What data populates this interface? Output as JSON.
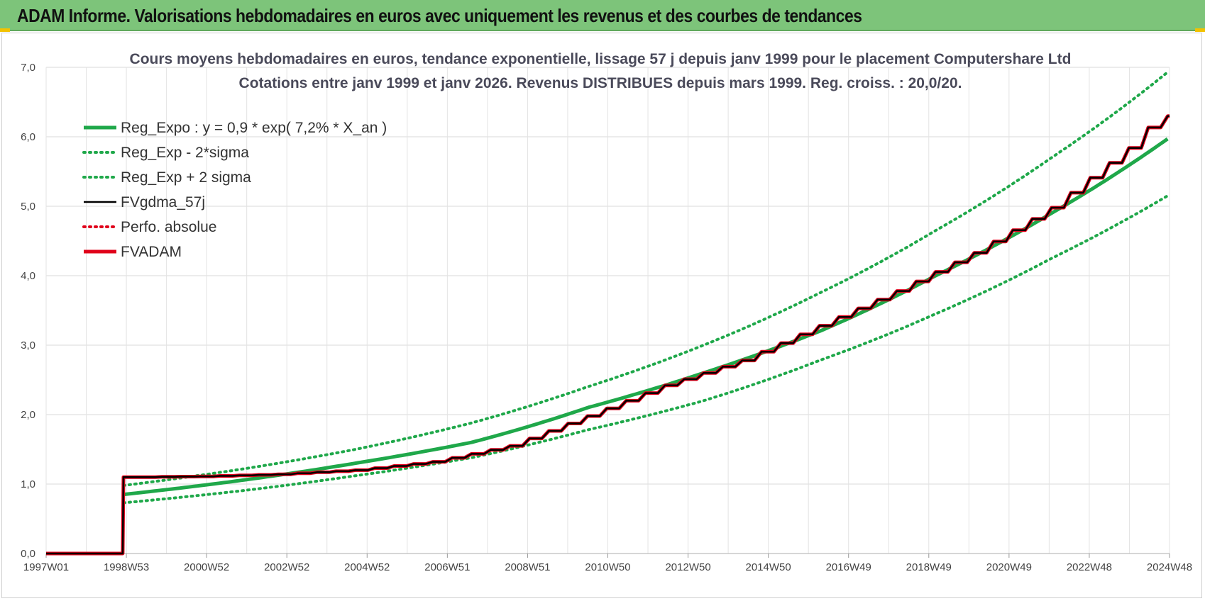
{
  "header": {
    "title": "ADAM Informe. Valorisations hebdomadaires en euros avec uniquement les revenus et des courbes de tendances"
  },
  "colors": {
    "banner": "#7dc47a",
    "trend": "#1fa84a",
    "fvgdma": "#000000",
    "perfo": "#e0001a",
    "fvadam": "#e0001a"
  },
  "chart_data": {
    "type": "line",
    "title": "Cours moyens hebdomadaires en euros, tendance exponentielle, lissage 57 j depuis janv 1999 pour le placement Computershare Ltd",
    "subtitle": "Cotations entre janv 1999 et janv 2026. Revenus DISTRIBUES depuis mars 1999. Reg. croiss. : 20,0/20.",
    "xlabel": "",
    "ylabel": "",
    "ylim": [
      0,
      7
    ],
    "yticks": [
      "0,0",
      "1,0",
      "2,0",
      "3,0",
      "4,0",
      "5,0",
      "6,0",
      "7,0"
    ],
    "xticks": [
      "1997W01",
      "1998W53",
      "2000W52",
      "2002W52",
      "2004W52",
      "2006W51",
      "2008W51",
      "2010W50",
      "2012W50",
      "2014W50",
      "2016W49",
      "2018W49",
      "2020W49",
      "2022W48",
      "2024W48"
    ],
    "x_range_years": [
      1997.0,
      2026.05
    ],
    "grid": true,
    "legend_position": "top-left",
    "series": [
      {
        "name": "Reg_Expo : y = 0,9 * exp( 7,2% *  X_an )",
        "style": "solid-thick",
        "color": "#1fa84a",
        "x": [
          1999.0,
          2002.0,
          2005.0,
          2008.0,
          2011.0,
          2014.0,
          2017.0,
          2020.0,
          2023.0,
          2026.0
        ],
        "y": [
          0.85,
          1.05,
          1.3,
          1.6,
          2.1,
          2.6,
          3.2,
          4.0,
          4.9,
          5.97
        ]
      },
      {
        "name": "Reg_Exp - 2*sigma",
        "style": "dotted",
        "color": "#1fa84a",
        "x": [
          1999.0,
          2002.0,
          2005.0,
          2008.0,
          2011.0,
          2014.0,
          2017.0,
          2020.0,
          2023.0,
          2026.0
        ],
        "y": [
          0.73,
          0.9,
          1.12,
          1.38,
          1.78,
          2.2,
          2.78,
          3.45,
          4.25,
          5.15
        ]
      },
      {
        "name": "Reg_Exp + 2 sigma",
        "style": "dotted",
        "color": "#1fa84a",
        "x": [
          1999.0,
          2002.0,
          2005.0,
          2008.0,
          2011.0,
          2014.0,
          2017.0,
          2020.0,
          2023.0,
          2026.0
        ],
        "y": [
          0.98,
          1.21,
          1.5,
          1.88,
          2.4,
          3.0,
          3.75,
          4.65,
          5.7,
          6.93
        ]
      },
      {
        "name": "FVgdma_57j",
        "style": "solid",
        "color": "#000000",
        "x": [
          1997.0,
          1998.98,
          1999.0,
          2001.0,
          2003.0,
          2005.0,
          2007.0,
          2009.0,
          2011.0,
          2013.0,
          2015.0,
          2017.0,
          2019.0,
          2021.0,
          2023.0,
          2025.0,
          2025.75,
          2026.05
        ],
        "y": [
          0.0,
          0.0,
          1.1,
          1.11,
          1.14,
          1.2,
          1.32,
          1.55,
          1.98,
          2.42,
          2.78,
          3.28,
          3.78,
          4.33,
          4.98,
          5.84,
          6.28,
          6.3
        ]
      },
      {
        "name": "Perfo. absolue",
        "style": "dotted",
        "color": "#e0001a",
        "x": [],
        "y": []
      },
      {
        "name": "FVADAM",
        "style": "step-thick",
        "color": "#e0001a",
        "x": [
          1997.0,
          1998.98,
          1999.0,
          2001.0,
          2003.0,
          2005.0,
          2007.0,
          2009.0,
          2011.0,
          2013.0,
          2015.0,
          2017.0,
          2019.0,
          2021.0,
          2023.0,
          2025.0,
          2025.75,
          2026.05
        ],
        "y": [
          0.0,
          0.0,
          1.1,
          1.11,
          1.14,
          1.2,
          1.32,
          1.55,
          1.98,
          2.42,
          2.78,
          3.28,
          3.78,
          4.33,
          4.98,
          5.84,
          6.28,
          6.3
        ]
      }
    ]
  }
}
